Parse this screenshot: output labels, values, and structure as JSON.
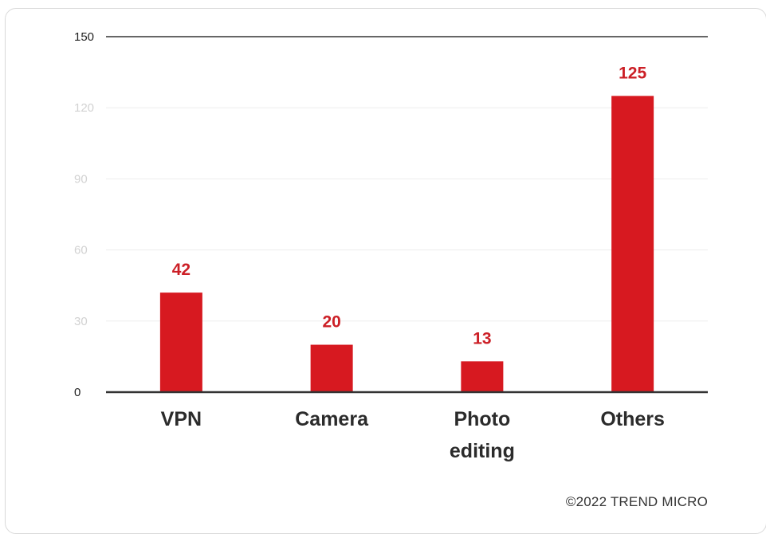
{
  "chart_data": {
    "type": "bar",
    "categories": [
      "VPN",
      "Camera",
      "Photo editing",
      "Others"
    ],
    "category_label_lines": [
      [
        "VPN"
      ],
      [
        "Camera"
      ],
      [
        "Photo",
        "editing"
      ],
      [
        "Others"
      ]
    ],
    "values": [
      42,
      20,
      13,
      125
    ],
    "data_labels": [
      "42",
      "20",
      "13",
      "125"
    ],
    "y_ticks": [
      0,
      30,
      60,
      90,
      120,
      150
    ],
    "ylim": [
      0,
      150
    ],
    "grid": true,
    "bar_color": "#d71920",
    "label_color": "#cc1f26",
    "title": "",
    "xlabel": "",
    "ylabel": ""
  },
  "credit": "©2022 TREND MICRO"
}
